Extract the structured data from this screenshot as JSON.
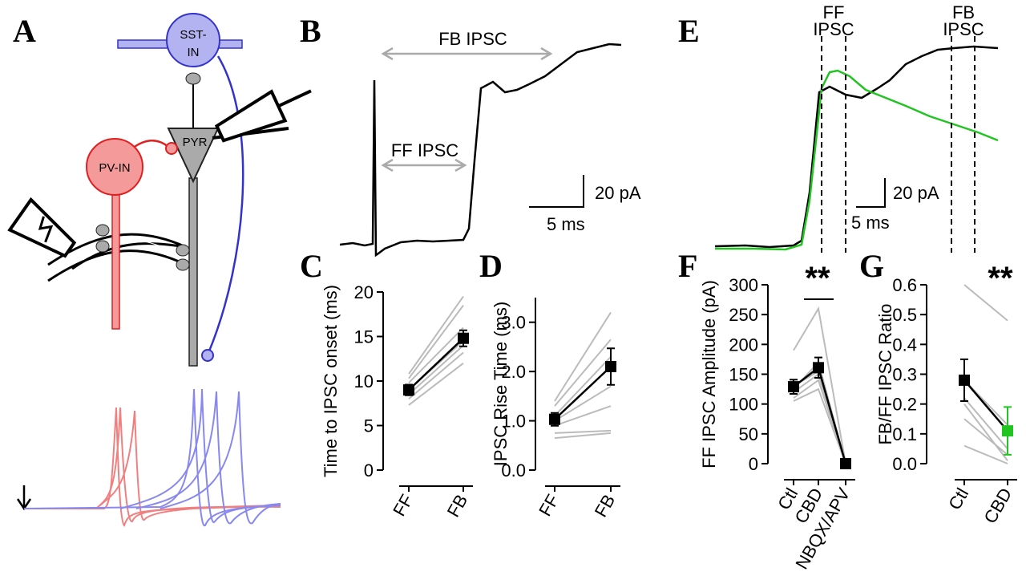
{
  "panel_labels": [
    "A",
    "B",
    "C",
    "D",
    "E",
    "F",
    "G"
  ],
  "panel_a": {
    "sst_label": [
      "SST-",
      "IN"
    ],
    "pyr_label": "PYR",
    "pv_label": "PV-IN"
  },
  "panel_b": {
    "fb_label": "FB IPSC",
    "ff_label": "FF IPSC",
    "scale_y": "20 pA",
    "scale_x": "5 ms"
  },
  "panel_e": {
    "ff_label": [
      "FF",
      "IPSC"
    ],
    "fb_label": [
      "FB",
      "IPSC"
    ],
    "scale_y": "20 pA",
    "scale_x": "5 ms"
  },
  "chart_data": [
    {
      "type": "line",
      "ylabel": "Time to IPSC onset (ms)",
      "categories": [
        "FF",
        "FB"
      ],
      "ylim": [
        0,
        20
      ],
      "yticks": [
        0,
        5,
        10,
        15,
        20
      ],
      "series": [
        {
          "color": "#bbbbbb",
          "values": [
            7.3,
            12
          ]
        },
        {
          "color": "#bbbbbb",
          "values": [
            8,
            13.2
          ]
        },
        {
          "color": "#bbbbbb",
          "values": [
            8.5,
            14
          ]
        },
        {
          "color": "#bbbbbb",
          "values": [
            9,
            14.5
          ]
        },
        {
          "color": "#bbbbbb",
          "values": [
            9.8,
            16
          ]
        },
        {
          "color": "#bbbbbb",
          "values": [
            10.3,
            18.5
          ]
        },
        {
          "color": "#bbbbbb",
          "values": [
            10.8,
            19.5
          ]
        },
        {
          "color": "#000000",
          "values": [
            9,
            14.8
          ],
          "errors": [
            0.6,
            0.9
          ]
        }
      ]
    },
    {
      "type": "line",
      "ylabel": "IPSC Rise Time (ms)",
      "categories": [
        "FF",
        "FB"
      ],
      "ylim": [
        0,
        3.5
      ],
      "yticks": [
        {
          "value": 0,
          "label": "0.0"
        },
        {
          "value": 1,
          "label": "1.0"
        },
        {
          "value": 2,
          "label": "2.0"
        },
        {
          "value": 3,
          "label": "3.0"
        }
      ],
      "series": [
        {
          "color": "#bbbbbb",
          "values": [
            0.65,
            0.75
          ]
        },
        {
          "color": "#bbbbbb",
          "values": [
            0.75,
            0.8
          ]
        },
        {
          "color": "#bbbbbb",
          "values": [
            0.9,
            1.3
          ]
        },
        {
          "color": "#bbbbbb",
          "values": [
            1,
            1.7
          ]
        },
        {
          "color": "#bbbbbb",
          "values": [
            1.1,
            2.3
          ]
        },
        {
          "color": "#bbbbbb",
          "values": [
            1.3,
            2.65
          ]
        },
        {
          "color": "#bbbbbb",
          "values": [
            1.4,
            3.2
          ]
        },
        {
          "color": "#000000",
          "values": [
            1.03,
            2.1
          ],
          "errors": [
            0.13,
            0.37
          ]
        }
      ]
    },
    {
      "type": "line",
      "ylabel": "FF IPSC Amplitude (pA)",
      "categories": [
        "Ctl",
        "CBD",
        "NBQX/APV"
      ],
      "ylim": [
        0,
        300
      ],
      "yticks": [
        0,
        50,
        100,
        150,
        200,
        250,
        300
      ],
      "annotations": [
        "**"
      ],
      "series": [
        {
          "color": "#bbbbbb",
          "values": [
            105,
            125,
            0
          ]
        },
        {
          "color": "#bbbbbb",
          "values": [
            110,
            140,
            0
          ]
        },
        {
          "color": "#bbbbbb",
          "values": [
            120,
            150,
            0
          ]
        },
        {
          "color": "#bbbbbb",
          "values": [
            125,
            170,
            0
          ]
        },
        {
          "color": "#bbbbbb",
          "values": [
            130,
            155,
            0
          ]
        },
        {
          "color": "#bbbbbb",
          "values": [
            190,
            260,
            0
          ]
        },
        {
          "color": "#000000",
          "values": [
            129,
            161,
            0
          ],
          "errors": [
            12,
            17,
            4
          ]
        }
      ]
    },
    {
      "type": "line",
      "ylabel": "FB/FF IPSC Ratio",
      "categories": [
        "Ctl",
        "CBD"
      ],
      "ylim": [
        0,
        0.6
      ],
      "yticks": [
        {
          "value": 0,
          "label": "0.0"
        },
        0.1,
        0.2,
        0.3,
        0.4,
        0.5,
        0.6
      ],
      "annotations": [
        "**"
      ],
      "series": [
        {
          "color": "#bbbbbb",
          "values": [
            0.6,
            0.48
          ]
        },
        {
          "color": "#bbbbbb",
          "values": [
            0.28,
            0.13
          ]
        },
        {
          "color": "#bbbbbb",
          "values": [
            0.22,
            0.05
          ]
        },
        {
          "color": "#bbbbbb",
          "values": [
            0.2,
            0.01
          ]
        },
        {
          "color": "#bbbbbb",
          "values": [
            0.15,
            0.03
          ]
        },
        {
          "color": "#bbbbbb",
          "values": [
            0.06,
            0
          ]
        },
        {
          "color": "#000000",
          "colors": [
            "#000000",
            "#22c422"
          ],
          "values": [
            0.28,
            0.11
          ],
          "errors": [
            0.07,
            0.08
          ]
        }
      ]
    }
  ]
}
